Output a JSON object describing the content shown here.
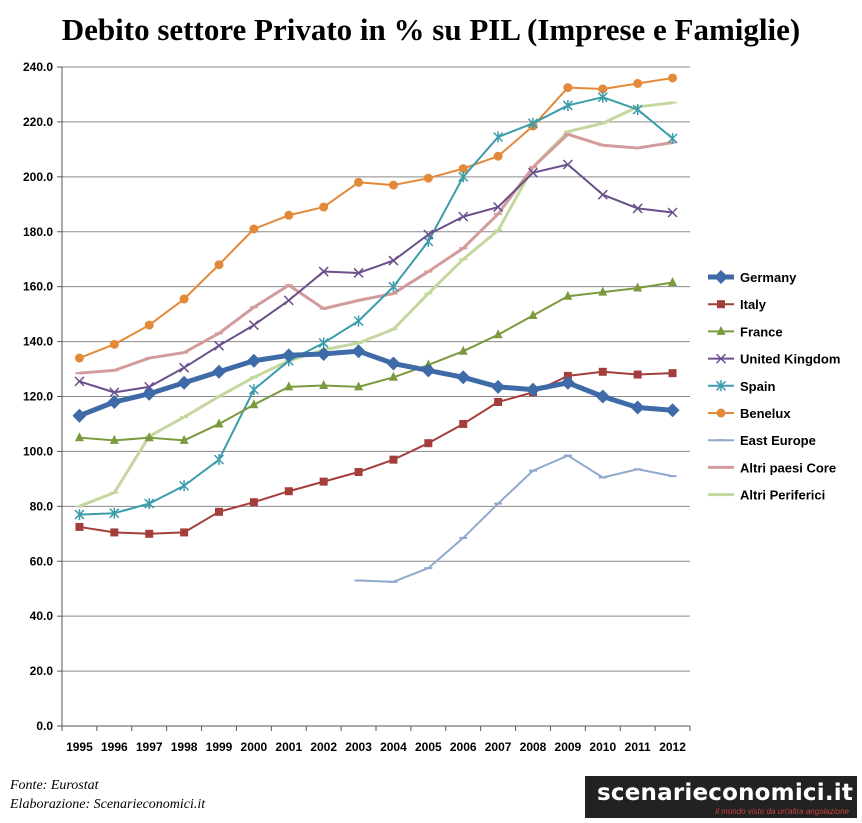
{
  "chart_data": {
    "type": "line",
    "title": "Debito settore Privato in % su PIL (Imprese e Famiglie)",
    "xlabel": "",
    "ylabel": "",
    "ylim": [
      0,
      240
    ],
    "yticks": [
      "0.0",
      "20.0",
      "40.0",
      "60.0",
      "80.0",
      "100.0",
      "120.0",
      "140.0",
      "160.0",
      "180.0",
      "200.0",
      "220.0",
      "240.0"
    ],
    "grid": true,
    "legend_position": "right",
    "x": [
      "1995",
      "1996",
      "1997",
      "1998",
      "1999",
      "2000",
      "2001",
      "2002",
      "2003",
      "2004",
      "2005",
      "2006",
      "2007",
      "2008",
      "2009",
      "2010",
      "2011",
      "2012"
    ],
    "series": [
      {
        "name": "Germany",
        "color": "#3e6aa8",
        "marker": "diamond",
        "width": 5,
        "values": [
          113,
          118,
          121,
          125,
          129,
          133,
          135,
          135.5,
          136.5,
          132,
          129.5,
          127,
          123.5,
          122.5,
          125,
          120,
          116,
          115
        ]
      },
      {
        "name": "Italy",
        "color": "#a43e3b",
        "marker": "square",
        "width": 2,
        "values": [
          72.5,
          70.5,
          70,
          70.5,
          78,
          81.5,
          85.5,
          89,
          92.5,
          97,
          103,
          110,
          118,
          121.5,
          127.5,
          129,
          128,
          128.5
        ]
      },
      {
        "name": "France",
        "color": "#7b9a3d",
        "marker": "triangle",
        "width": 2,
        "values": [
          105,
          104,
          105,
          104,
          110,
          117,
          123.5,
          124,
          123.5,
          127,
          131.5,
          136.5,
          142.5,
          149.5,
          156.5,
          158,
          159.5,
          161.5
        ]
      },
      {
        "name": "United Kingdom",
        "color": "#6a4f8b",
        "marker": "x",
        "width": 2,
        "values": [
          125.5,
          121.5,
          123.5,
          130.5,
          138.5,
          146,
          155,
          165.5,
          165,
          169.5,
          179,
          185.5,
          189,
          201.5,
          204.5,
          193.5,
          188.5,
          187
        ]
      },
      {
        "name": "Spain",
        "color": "#3b9cab",
        "marker": "star",
        "width": 2,
        "values": [
          77,
          77.5,
          81,
          87.5,
          97,
          122.5,
          133,
          139.5,
          147.5,
          160,
          176.5,
          200,
          214.5,
          219.5,
          226,
          229,
          224.5,
          214
        ]
      },
      {
        "name": "Benelux",
        "color": "#e28a3a",
        "marker": "circle",
        "width": 2,
        "values": [
          134,
          139,
          146,
          155.5,
          168,
          181,
          186,
          189,
          198,
          197,
          199.5,
          203,
          207.5,
          218.5,
          232.5,
          232,
          234,
          236
        ]
      },
      {
        "name": "East Europe",
        "color": "#90a8cc",
        "marker": "dash",
        "width": 2,
        "values": [
          null,
          null,
          null,
          null,
          null,
          null,
          null,
          null,
          53,
          52.5,
          57.5,
          68.5,
          81,
          93,
          98.5,
          90.5,
          93.5,
          91
        ]
      },
      {
        "name": "Altri paesi Core",
        "color": "#d39b9b",
        "marker": "dash",
        "width": 3,
        "values": [
          128.5,
          129.5,
          134,
          136,
          143,
          152.5,
          160.5,
          152,
          155,
          157.5,
          165.5,
          174,
          186.5,
          203.5,
          215.5,
          211.5,
          210.5,
          212.5
        ]
      },
      {
        "name": "Altri Periferici",
        "color": "#c4d79f",
        "marker": "dash",
        "width": 3,
        "values": [
          80,
          85,
          105.5,
          112.5,
          120,
          127,
          133,
          137,
          139.5,
          144.5,
          157.5,
          170,
          180.5,
          203.5,
          216.5,
          219.5,
          225.5,
          227
        ]
      }
    ]
  },
  "footer": {
    "source": "Fonte: Eurostat",
    "elaboration": "Elaborazione: Scenarieconomici.it"
  },
  "brand": {
    "name": "scenarieconomici.it",
    "tagline": "il mondo visto da un'altra angolazione"
  }
}
